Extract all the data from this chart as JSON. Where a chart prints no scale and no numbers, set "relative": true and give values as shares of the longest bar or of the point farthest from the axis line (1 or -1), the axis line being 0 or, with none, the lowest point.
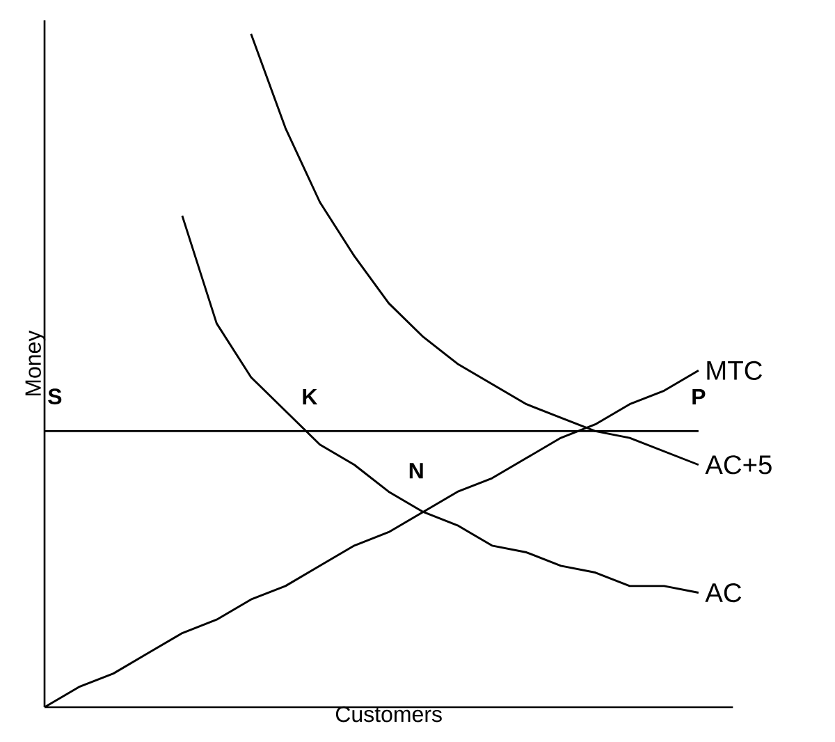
{
  "chart_data": {
    "type": "line",
    "relative": true,
    "xlabel": "Customers",
    "ylabel": "Money",
    "line_style": "solid",
    "marker": "none",
    "categories": [
      null,
      null,
      null,
      null,
      null,
      null,
      null,
      null,
      null,
      null,
      null,
      null,
      null,
      null,
      null,
      null,
      null,
      null,
      null,
      null
    ],
    "series": [
      {
        "name": "MTC",
        "color": "#000000",
        "values": [
          0,
          0.03,
          0.05,
          0.08,
          0.11,
          0.13,
          0.16,
          0.18,
          0.21,
          0.24,
          0.26,
          0.29,
          0.32,
          0.34,
          0.37,
          0.4,
          0.42,
          0.45,
          0.47,
          0.5
        ]
      },
      {
        "name": "AC+5",
        "color": "#000000",
        "values": [
          null,
          null,
          null,
          null,
          null,
          null,
          1,
          0.86,
          0.75,
          0.67,
          0.6,
          0.55,
          0.51,
          0.48,
          0.45,
          0.43,
          0.41,
          0.4,
          0.38,
          0.36
        ]
      },
      {
        "name": "AC",
        "color": "#000000",
        "values": [
          null,
          null,
          null,
          null,
          0.73,
          0.57,
          0.49,
          0.44,
          0.39,
          0.36,
          0.32,
          0.29,
          0.27,
          0.24,
          0.23,
          0.21,
          0.2,
          0.18,
          0.18,
          0.17
        ]
      },
      {
        "color": "#000000",
        "values": [
          0.41,
          0.41,
          0.41,
          0.41,
          0.41,
          0.41,
          0.41,
          0.41,
          0.41,
          0.41,
          0.41,
          0.41,
          0.41,
          0.41,
          0.41,
          0.41,
          0.41,
          0.41,
          0.41,
          0.41
        ]
      }
    ],
    "annotations": [
      "S",
      "P",
      "K",
      "N"
    ]
  }
}
